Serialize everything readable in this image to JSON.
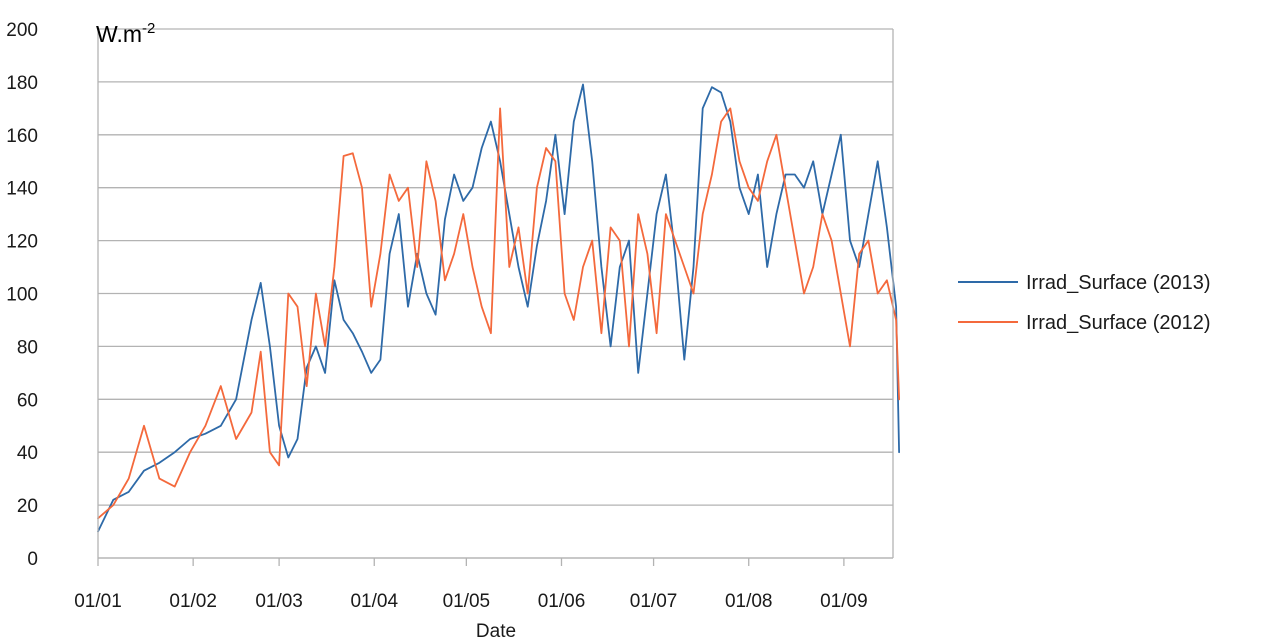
{
  "chart_data": {
    "type": "line",
    "title": "",
    "unit_base": "W.m",
    "unit_exponent": "-2",
    "xlabel": "Date",
    "ylabel": "",
    "x_ticks": [
      "01/01",
      "01/02",
      "01/03",
      "01/04",
      "01/05",
      "01/06",
      "01/07",
      "01/08",
      "01/09"
    ],
    "y_ticks": [
      "0",
      "20",
      "40",
      "60",
      "80",
      "100",
      "120",
      "140",
      "160",
      "180",
      "200"
    ],
    "ylim": [
      0,
      200
    ],
    "xlim_day_of_year": [
      1,
      260
    ],
    "grid": "horizontal",
    "legend_position": "right",
    "series": [
      {
        "name": "Irrad_Surface (2013)",
        "color": "#2e6aa8",
        "x": [
          "01/01",
          "01/06",
          "01/11",
          "01/16",
          "01/21",
          "01/26",
          "01/31",
          "02/05",
          "02/10",
          "02/15",
          "02/20",
          "02/23",
          "02/26",
          "03/01",
          "03/04",
          "03/07",
          "03/10",
          "03/13",
          "03/16",
          "03/19",
          "03/22",
          "03/25",
          "03/28",
          "03/31",
          "04/03",
          "04/06",
          "04/09",
          "04/12",
          "04/15",
          "04/18",
          "04/21",
          "04/24",
          "04/27",
          "04/30",
          "05/03",
          "05/06",
          "05/09",
          "05/12",
          "05/15",
          "05/18",
          "05/21",
          "05/24",
          "05/27",
          "05/30",
          "06/02",
          "06/05",
          "06/08",
          "06/11",
          "06/14",
          "06/17",
          "06/20",
          "06/23",
          "06/26",
          "06/29",
          "07/02",
          "07/05",
          "07/08",
          "07/11",
          "07/14",
          "07/17",
          "07/20",
          "07/23",
          "07/26",
          "07/29",
          "08/01",
          "08/04",
          "08/07",
          "08/10",
          "08/13",
          "08/16",
          "08/19",
          "08/22",
          "08/25",
          "08/28",
          "08/31",
          "09/03",
          "09/06",
          "09/09",
          "09/12",
          "09/15",
          "09/18",
          "09/19"
        ],
        "values": [
          10,
          22,
          25,
          33,
          36,
          40,
          45,
          47,
          50,
          60,
          90,
          104,
          80,
          50,
          38,
          45,
          72,
          80,
          70,
          105,
          90,
          85,
          78,
          70,
          75,
          115,
          130,
          95,
          115,
          100,
          92,
          128,
          145,
          135,
          140,
          155,
          165,
          150,
          130,
          110,
          95,
          118,
          135,
          160,
          130,
          165,
          179,
          150,
          110,
          80,
          110,
          120,
          70,
          100,
          130,
          145,
          115,
          75,
          110,
          170,
          178,
          176,
          165,
          140,
          130,
          145,
          110,
          130,
          145,
          145,
          140,
          150,
          130,
          145,
          160,
          120,
          110,
          130,
          150,
          125,
          95,
          40
        ]
      },
      {
        "name": "Irrad_Surface (2012)",
        "color": "#f4693c",
        "x": [
          "01/01",
          "01/06",
          "01/11",
          "01/16",
          "01/21",
          "01/26",
          "01/31",
          "02/05",
          "02/10",
          "02/15",
          "02/20",
          "02/23",
          "02/26",
          "03/01",
          "03/04",
          "03/07",
          "03/10",
          "03/13",
          "03/16",
          "03/19",
          "03/22",
          "03/25",
          "03/28",
          "03/31",
          "04/03",
          "04/06",
          "04/09",
          "04/12",
          "04/15",
          "04/18",
          "04/21",
          "04/24",
          "04/27",
          "04/30",
          "05/03",
          "05/06",
          "05/09",
          "05/12",
          "05/15",
          "05/18",
          "05/21",
          "05/24",
          "05/27",
          "05/30",
          "06/02",
          "06/05",
          "06/08",
          "06/11",
          "06/14",
          "06/17",
          "06/20",
          "06/23",
          "06/26",
          "06/29",
          "07/02",
          "07/05",
          "07/08",
          "07/11",
          "07/14",
          "07/17",
          "07/20",
          "07/23",
          "07/26",
          "07/29",
          "08/01",
          "08/04",
          "08/07",
          "08/10",
          "08/13",
          "08/16",
          "08/19",
          "08/22",
          "08/25",
          "08/28",
          "08/31",
          "09/03",
          "09/06",
          "09/09",
          "09/12",
          "09/15",
          "09/18",
          "09/19"
        ],
        "values": [
          15,
          20,
          30,
          50,
          30,
          27,
          40,
          50,
          65,
          45,
          55,
          78,
          40,
          35,
          100,
          95,
          65,
          100,
          80,
          110,
          152,
          153,
          140,
          95,
          115,
          145,
          135,
          140,
          110,
          150,
          135,
          105,
          115,
          130,
          110,
          95,
          85,
          170,
          110,
          125,
          100,
          140,
          155,
          150,
          100,
          90,
          110,
          120,
          85,
          125,
          120,
          80,
          130,
          115,
          85,
          130,
          120,
          110,
          100,
          130,
          145,
          165,
          170,
          150,
          140,
          135,
          150,
          160,
          140,
          120,
          100,
          110,
          130,
          120,
          100,
          80,
          115,
          120,
          100,
          105,
          90,
          60
        ]
      }
    ]
  }
}
